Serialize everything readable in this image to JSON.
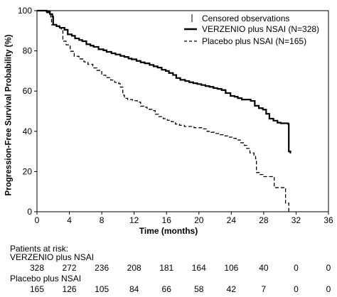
{
  "chart_data": {
    "type": "line",
    "xlabel": "Time (months)",
    "ylabel": "Progression-Free Survival Probability (%)",
    "xlim": [
      0,
      36
    ],
    "ylim": [
      0,
      100
    ],
    "x_ticks": [
      0,
      4,
      8,
      12,
      16,
      20,
      24,
      28,
      32,
      36
    ],
    "y_ticks": [
      0,
      20,
      40,
      60,
      80,
      100
    ],
    "grid": false,
    "legend_position": "top-right",
    "censored_label": "Censored observations",
    "series": [
      {
        "name": "VERZENIO plus NSAI (N=328)",
        "line_style": "solid",
        "points": [
          [
            0,
            100
          ],
          [
            1.2,
            99.5
          ],
          [
            1.6,
            98.3
          ],
          [
            1.9,
            97
          ],
          [
            2.0,
            93
          ],
          [
            2.4,
            92.3
          ],
          [
            2.8,
            91.5
          ],
          [
            3.4,
            90.5
          ],
          [
            3.8,
            88.2
          ],
          [
            4.3,
            87.5
          ],
          [
            4.7,
            86.2
          ],
          [
            5.2,
            85.4
          ],
          [
            5.6,
            84.8
          ],
          [
            6.1,
            83.3
          ],
          [
            6.6,
            82.6
          ],
          [
            7.0,
            82
          ],
          [
            7.6,
            80.8
          ],
          [
            8.2,
            80.3
          ],
          [
            8.6,
            79.5
          ],
          [
            9.2,
            78.8
          ],
          [
            9.7,
            78.2
          ],
          [
            10.3,
            77.5
          ],
          [
            10.8,
            77
          ],
          [
            11.3,
            76.2
          ],
          [
            11.7,
            75.8
          ],
          [
            12.3,
            75
          ],
          [
            12.8,
            74.3
          ],
          [
            13.3,
            73.8
          ],
          [
            13.9,
            73
          ],
          [
            14.4,
            72.3
          ],
          [
            14.9,
            71.7
          ],
          [
            15.4,
            70.6
          ],
          [
            15.9,
            70
          ],
          [
            16.3,
            69
          ],
          [
            16.8,
            68
          ],
          [
            17.2,
            66.5
          ],
          [
            17.7,
            65.6
          ],
          [
            18.3,
            65
          ],
          [
            18.8,
            64.4
          ],
          [
            19.3,
            63.9
          ],
          [
            19.8,
            63.5
          ],
          [
            20.3,
            63
          ],
          [
            20.8,
            62.5
          ],
          [
            21.3,
            62.1
          ],
          [
            21.8,
            61.5
          ],
          [
            22.3,
            61.1
          ],
          [
            22.8,
            60.5
          ],
          [
            23.3,
            59
          ],
          [
            23.9,
            57.6
          ],
          [
            24.4,
            57.2
          ],
          [
            24.8,
            56.5
          ],
          [
            25.3,
            55.8
          ],
          [
            25.9,
            55.8
          ],
          [
            26.4,
            55.1
          ],
          [
            26.9,
            52.7
          ],
          [
            27.4,
            51.5
          ],
          [
            27.9,
            50.8
          ],
          [
            28.3,
            48.7
          ],
          [
            28.7,
            46.3
          ],
          [
            29.2,
            45.3
          ],
          [
            29.7,
            44.3
          ],
          [
            30.1,
            44
          ],
          [
            30.6,
            44
          ],
          [
            31.0,
            43.7
          ],
          [
            31.1,
            30
          ],
          [
            31.3,
            29
          ]
        ]
      },
      {
        "name": "Placebo plus NSAI (N=165)",
        "line_style": "dashed",
        "points": [
          [
            0,
            100
          ],
          [
            1.2,
            99
          ],
          [
            1.7,
            96.5
          ],
          [
            1.8,
            93
          ],
          [
            2.2,
            92.4
          ],
          [
            2.7,
            91.5
          ],
          [
            3.0,
            90.9
          ],
          [
            3.2,
            84.8
          ],
          [
            3.6,
            83
          ],
          [
            4.1,
            79.8
          ],
          [
            4.6,
            77.3
          ],
          [
            5.2,
            76
          ],
          [
            5.8,
            74.5
          ],
          [
            6.3,
            73.3
          ],
          [
            6.9,
            71.5
          ],
          [
            7.4,
            70.3
          ],
          [
            8.0,
            67.9
          ],
          [
            8.5,
            66.7
          ],
          [
            9.1,
            65.5
          ],
          [
            9.6,
            64.3
          ],
          [
            10.1,
            63.7
          ],
          [
            10.3,
            62
          ],
          [
            10.6,
            58
          ],
          [
            10.8,
            56.4
          ],
          [
            11.2,
            55.8
          ],
          [
            11.8,
            55.2
          ],
          [
            12.4,
            54.5
          ],
          [
            12.8,
            52.5
          ],
          [
            13.2,
            52
          ],
          [
            13.6,
            50.9
          ],
          [
            14.2,
            50.3
          ],
          [
            14.6,
            48.5
          ],
          [
            15.0,
            47.3
          ],
          [
            15.6,
            46.3
          ],
          [
            16.1,
            45.5
          ],
          [
            16.6,
            44.8
          ],
          [
            17.1,
            43.6
          ],
          [
            17.6,
            43
          ],
          [
            18.2,
            42.4
          ],
          [
            18.8,
            42.4
          ],
          [
            19.4,
            41.8
          ],
          [
            20.0,
            41.8
          ],
          [
            20.5,
            41.2
          ],
          [
            21.0,
            40
          ],
          [
            21.5,
            39.5
          ],
          [
            22.0,
            38.9
          ],
          [
            22.6,
            38.3
          ],
          [
            23.1,
            37.7
          ],
          [
            23.6,
            37.1
          ],
          [
            24.1,
            36.5
          ],
          [
            24.6,
            35.7
          ],
          [
            25.1,
            34.3
          ],
          [
            25.6,
            33
          ],
          [
            25.9,
            31.5
          ],
          [
            26.3,
            29.2
          ],
          [
            26.8,
            28
          ],
          [
            27.0,
            26.3
          ],
          [
            27.1,
            19.5
          ],
          [
            27.5,
            18.5
          ],
          [
            27.9,
            17.5
          ],
          [
            28.3,
            17.5
          ],
          [
            29.1,
            17.3
          ],
          [
            29.3,
            12
          ],
          [
            30.2,
            12
          ],
          [
            30.6,
            11.5
          ],
          [
            30.7,
            4.3
          ],
          [
            31.1,
            0
          ]
        ]
      }
    ]
  },
  "risk_table": {
    "title": "Patients at risk:",
    "times": [
      0,
      4,
      8,
      12,
      16,
      20,
      24,
      28,
      32,
      36
    ],
    "groups": [
      {
        "label": "VERZENIO plus NSAI",
        "counts": [
          "328",
          "272",
          "236",
          "208",
          "181",
          "164",
          "106",
          "40",
          "0",
          "0"
        ]
      },
      {
        "label": "Placebo plus NSAI",
        "counts": [
          "165",
          "126",
          "105",
          "84",
          "66",
          "58",
          "42",
          "7",
          "0",
          "0"
        ]
      }
    ]
  }
}
